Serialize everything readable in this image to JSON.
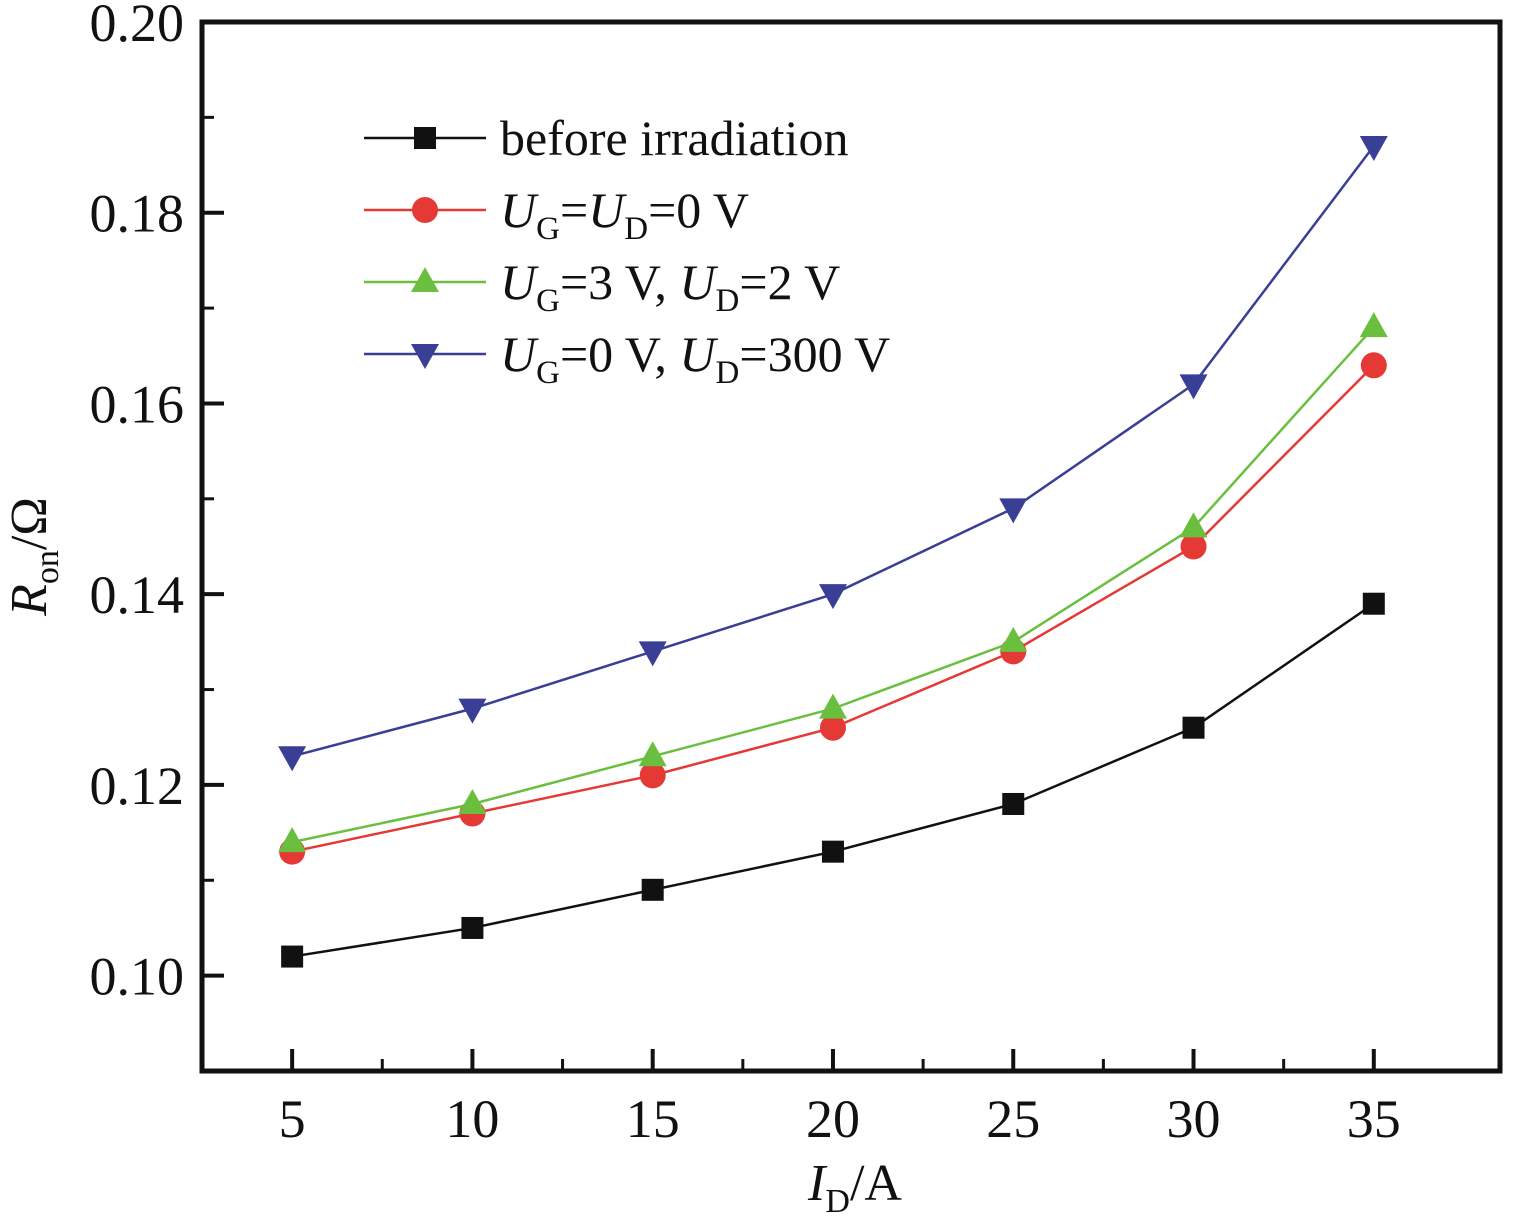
{
  "chart_data": {
    "type": "line",
    "x": [
      5,
      10,
      15,
      20,
      25,
      30,
      35
    ],
    "xlim": [
      2.5,
      38.5
    ],
    "ylim": [
      0.09,
      0.2
    ],
    "xticks": [
      5,
      10,
      15,
      20,
      25,
      30,
      35
    ],
    "xtick_labels": [
      "5",
      "10",
      "15",
      "20",
      "25",
      "30",
      "35"
    ],
    "yticks": [
      0.1,
      0.12,
      0.14,
      0.16,
      0.18,
      0.2
    ],
    "ytick_labels": [
      "0.10",
      "0.12",
      "0.14",
      "0.16",
      "0.18",
      "0.20"
    ],
    "xlabel": {
      "main": "I",
      "sub": "D",
      "rest": "/A"
    },
    "ylabel": {
      "main": "R",
      "sub": "on",
      "rest": "/Ω"
    },
    "grid": false,
    "legend_position": "top-left",
    "series": [
      {
        "name": "before irradiation",
        "legend_parts": [
          {
            "t": "before irradiation",
            "k": "n"
          }
        ],
        "color": "#111111",
        "marker": "square",
        "values": [
          0.102,
          0.105,
          0.109,
          0.113,
          0.118,
          0.126,
          0.139
        ]
      },
      {
        "name": "UG=UD=0 V",
        "legend_parts": [
          {
            "t": "U",
            "k": "i"
          },
          {
            "t": "G",
            "k": "s"
          },
          {
            "t": "=",
            "k": "n"
          },
          {
            "t": "U",
            "k": "i"
          },
          {
            "t": "D",
            "k": "s"
          },
          {
            "t": "=0 V",
            "k": "n"
          }
        ],
        "color": "#e53935",
        "marker": "circle",
        "values": [
          0.113,
          0.117,
          0.121,
          0.126,
          0.134,
          0.145,
          0.164
        ]
      },
      {
        "name": "UG=3 V, UD=2 V",
        "legend_parts": [
          {
            "t": "U",
            "k": "i"
          },
          {
            "t": "G",
            "k": "s"
          },
          {
            "t": "=3 V, ",
            "k": "n"
          },
          {
            "t": "U",
            "k": "i"
          },
          {
            "t": "D",
            "k": "s"
          },
          {
            "t": "=2 V",
            "k": "n"
          }
        ],
        "color": "#6abf3f",
        "marker": "triangle-up",
        "values": [
          0.114,
          0.118,
          0.123,
          0.128,
          0.135,
          0.147,
          0.168
        ]
      },
      {
        "name": "UG=0 V, UD=300 V",
        "legend_parts": [
          {
            "t": "U",
            "k": "i"
          },
          {
            "t": "G",
            "k": "s"
          },
          {
            "t": "=0 V, ",
            "k": "n"
          },
          {
            "t": "U",
            "k": "i"
          },
          {
            "t": "D",
            "k": "s"
          },
          {
            "t": "=300 V",
            "k": "n"
          }
        ],
        "color": "#3a3f96",
        "marker": "triangle-down",
        "values": [
          0.123,
          0.128,
          0.134,
          0.14,
          0.149,
          0.162,
          0.187
        ]
      }
    ]
  }
}
